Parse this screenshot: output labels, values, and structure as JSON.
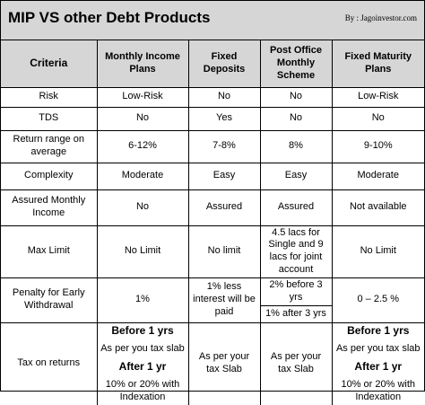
{
  "header": {
    "title": "MIP VS other Debt Products",
    "credit": "By : Jagoinvestor.com"
  },
  "table": {
    "columns": [
      "Criteria",
      "Monthly Income Plans",
      "Fixed Deposits",
      "Post Office Monthly Scheme",
      "Fixed Maturity Plans"
    ],
    "rows": [
      [
        "Risk",
        "Low-Risk",
        "No",
        "No",
        "Low-Risk"
      ],
      [
        "TDS",
        "No",
        "Yes",
        "No",
        "No"
      ],
      [
        "Return range on average",
        "6-12%",
        "7-8%",
        "8%",
        "9-10%"
      ],
      [
        "Complexity",
        "Moderate",
        "Easy",
        "Easy",
        "Moderate"
      ],
      [
        "Assured Monthly Income",
        "No",
        "Assured",
        "Assured",
        "Not available"
      ],
      [
        "Max Limit",
        "No Limit",
        "No limit",
        "4.5 lacs for Single and 9 lacs for joint account",
        "No Limit"
      ],
      [
        "Penalty for Early Withdrawal",
        "1%",
        "1% less interest will be paid",
        [
          "2% before 3 yrs",
          "1% after 3 yrs"
        ],
        "0 – 2.5 %"
      ],
      [
        "Tax on returns",
        [
          "Before 1 yrs",
          "As per you tax slab",
          "After 1 yr",
          "10% or 20% with Indexation"
        ],
        "As per your tax Slab",
        "As per your tax Slab",
        [
          "Before 1 yrs",
          "As per you tax slab",
          "After 1 yr",
          "10% or 20% with Indexation"
        ]
      ]
    ]
  }
}
